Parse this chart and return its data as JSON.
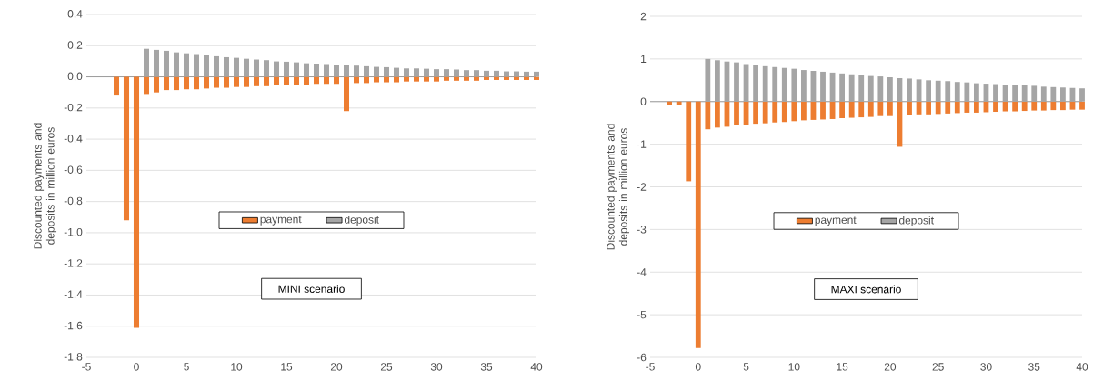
{
  "chart_data": [
    {
      "type": "bar",
      "ylabel": "Discounted  payments and deposits in million euros",
      "annotations": [
        "MINI scenario"
      ],
      "x": [
        -2,
        -1,
        0,
        1,
        2,
        3,
        4,
        5,
        6,
        7,
        8,
        9,
        10,
        11,
        12,
        13,
        14,
        15,
        16,
        17,
        18,
        19,
        20,
        21,
        22,
        23,
        24,
        25,
        26,
        27,
        28,
        29,
        30,
        31,
        32,
        33,
        34,
        35,
        36,
        37,
        38,
        39,
        40
      ],
      "series": [
        {
          "name": "payment",
          "color": "#ed7d31",
          "values": [
            -0.12,
            -0.92,
            -1.61,
            -0.11,
            -0.1,
            -0.085,
            -0.085,
            -0.08,
            -0.08,
            -0.075,
            -0.07,
            -0.07,
            -0.065,
            -0.065,
            -0.06,
            -0.06,
            -0.055,
            -0.055,
            -0.05,
            -0.05,
            -0.045,
            -0.045,
            -0.045,
            -0.22,
            -0.04,
            -0.04,
            -0.035,
            -0.035,
            -0.035,
            -0.03,
            -0.03,
            -0.03,
            -0.03,
            -0.025,
            -0.025,
            -0.025,
            -0.025,
            -0.02,
            -0.02,
            -0.02,
            -0.02,
            -0.02,
            -0.02
          ]
        },
        {
          "name": "deposit",
          "color": "#a5a5a5",
          "values": [
            null,
            null,
            null,
            0.18,
            0.173,
            0.167,
            0.157,
            0.151,
            0.146,
            0.138,
            0.132,
            0.126,
            0.122,
            0.116,
            0.111,
            0.107,
            0.099,
            0.097,
            0.093,
            0.087,
            0.085,
            0.082,
            0.078,
            0.076,
            0.072,
            0.068,
            0.064,
            0.062,
            0.058,
            0.054,
            0.054,
            0.052,
            0.049,
            0.049,
            0.047,
            0.043,
            0.043,
            0.039,
            0.039,
            0.035,
            0.035,
            0.033,
            0.033
          ]
        }
      ],
      "xlim": [
        -5,
        40
      ],
      "xticks": [
        -5,
        0,
        5,
        10,
        15,
        20,
        25,
        30,
        35,
        40
      ],
      "ylim": [
        -1.8,
        0.4
      ],
      "yticks": [
        {
          "value": -1.8,
          "label": "-1,8"
        },
        {
          "value": -1.6,
          "label": "-1,6"
        },
        {
          "value": -1.4,
          "label": "-1,4"
        },
        {
          "value": -1.2,
          "label": "-1,2"
        },
        {
          "value": -1.0,
          "label": "-1,0"
        },
        {
          "value": -0.8,
          "label": "-0,8"
        },
        {
          "value": -0.6,
          "label": "-0,6"
        },
        {
          "value": -0.4,
          "label": "-0,4"
        },
        {
          "value": -0.2,
          "label": "-0,2"
        },
        {
          "value": 0.0,
          "label": "0,0"
        },
        {
          "value": 0.2,
          "label": "0,2"
        },
        {
          "value": 0.4,
          "label": "0,4"
        }
      ],
      "grid": "y",
      "legend": "center",
      "stacked": true
    },
    {
      "type": "bar",
      "ylabel": "Discounted  payments and deposits in million euros",
      "annotations": [
        "MAXI scenario"
      ],
      "x": [
        -3,
        -2,
        -1,
        0,
        1,
        2,
        3,
        4,
        5,
        6,
        7,
        8,
        9,
        10,
        11,
        12,
        13,
        14,
        15,
        16,
        17,
        18,
        19,
        20,
        21,
        22,
        23,
        24,
        25,
        26,
        27,
        28,
        29,
        30,
        31,
        32,
        33,
        34,
        35,
        36,
        37,
        38,
        39,
        40
      ],
      "series": [
        {
          "name": "payment",
          "color": "#ed7d31",
          "values": [
            -0.08,
            -0.09,
            -1.87,
            -5.78,
            -0.65,
            -0.61,
            -0.59,
            -0.56,
            -0.54,
            -0.52,
            -0.51,
            -0.49,
            -0.48,
            -0.46,
            -0.44,
            -0.43,
            -0.42,
            -0.41,
            -0.39,
            -0.38,
            -0.37,
            -0.36,
            -0.34,
            -0.34,
            -1.06,
            -0.32,
            -0.3,
            -0.3,
            -0.29,
            -0.28,
            -0.27,
            -0.26,
            -0.26,
            -0.25,
            -0.24,
            -0.23,
            -0.23,
            -0.22,
            -0.21,
            -0.21,
            -0.2,
            -0.2,
            -0.19,
            -0.19
          ]
        },
        {
          "name": "deposit",
          "color": "#a5a5a5",
          "values": [
            null,
            null,
            null,
            null,
            1.0,
            0.97,
            0.94,
            0.92,
            0.88,
            0.86,
            0.83,
            0.81,
            0.79,
            0.77,
            0.74,
            0.72,
            0.7,
            0.68,
            0.66,
            0.64,
            0.62,
            0.6,
            0.59,
            0.57,
            0.55,
            0.54,
            0.52,
            0.5,
            0.49,
            0.48,
            0.46,
            0.45,
            0.43,
            0.42,
            0.41,
            0.4,
            0.39,
            0.38,
            0.37,
            0.35,
            0.34,
            0.33,
            0.32,
            0.31
          ]
        }
      ],
      "xlim": [
        -5,
        40
      ],
      "xticks": [
        -5,
        0,
        5,
        10,
        15,
        20,
        25,
        30,
        35,
        40
      ],
      "ylim": [
        -6,
        2
      ],
      "yticks": [
        -6,
        -5,
        -4,
        -3,
        -2,
        -1,
        0,
        1,
        2
      ],
      "grid": "y",
      "legend": "center",
      "stacked": true
    }
  ]
}
